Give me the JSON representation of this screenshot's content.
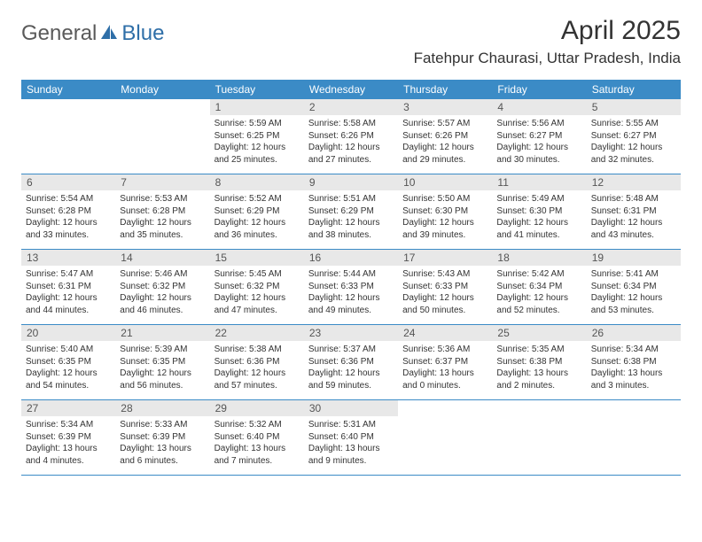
{
  "logo": {
    "text1": "General",
    "text2": "Blue"
  },
  "title": "April 2025",
  "location": "Fatehpur Chaurasi, Uttar Pradesh, India",
  "colors": {
    "header_bg": "#3b8bc6",
    "header_text": "#ffffff",
    "daynum_bg": "#e8e8e8",
    "border": "#3b8bc6",
    "body_text": "#333333",
    "logo_gray": "#5a5a5a",
    "logo_blue": "#2f6fa8"
  },
  "typography": {
    "title_fontsize": 30,
    "location_fontsize": 17,
    "dayheader_fontsize": 12,
    "daynum_fontsize": 12,
    "body_fontsize": 10
  },
  "day_names": [
    "Sunday",
    "Monday",
    "Tuesday",
    "Wednesday",
    "Thursday",
    "Friday",
    "Saturday"
  ],
  "weeks": [
    [
      null,
      null,
      {
        "n": "1",
        "sunrise": "Sunrise: 5:59 AM",
        "sunset": "Sunset: 6:25 PM",
        "daylight": "Daylight: 12 hours and 25 minutes."
      },
      {
        "n": "2",
        "sunrise": "Sunrise: 5:58 AM",
        "sunset": "Sunset: 6:26 PM",
        "daylight": "Daylight: 12 hours and 27 minutes."
      },
      {
        "n": "3",
        "sunrise": "Sunrise: 5:57 AM",
        "sunset": "Sunset: 6:26 PM",
        "daylight": "Daylight: 12 hours and 29 minutes."
      },
      {
        "n": "4",
        "sunrise": "Sunrise: 5:56 AM",
        "sunset": "Sunset: 6:27 PM",
        "daylight": "Daylight: 12 hours and 30 minutes."
      },
      {
        "n": "5",
        "sunrise": "Sunrise: 5:55 AM",
        "sunset": "Sunset: 6:27 PM",
        "daylight": "Daylight: 12 hours and 32 minutes."
      }
    ],
    [
      {
        "n": "6",
        "sunrise": "Sunrise: 5:54 AM",
        "sunset": "Sunset: 6:28 PM",
        "daylight": "Daylight: 12 hours and 33 minutes."
      },
      {
        "n": "7",
        "sunrise": "Sunrise: 5:53 AM",
        "sunset": "Sunset: 6:28 PM",
        "daylight": "Daylight: 12 hours and 35 minutes."
      },
      {
        "n": "8",
        "sunrise": "Sunrise: 5:52 AM",
        "sunset": "Sunset: 6:29 PM",
        "daylight": "Daylight: 12 hours and 36 minutes."
      },
      {
        "n": "9",
        "sunrise": "Sunrise: 5:51 AM",
        "sunset": "Sunset: 6:29 PM",
        "daylight": "Daylight: 12 hours and 38 minutes."
      },
      {
        "n": "10",
        "sunrise": "Sunrise: 5:50 AM",
        "sunset": "Sunset: 6:30 PM",
        "daylight": "Daylight: 12 hours and 39 minutes."
      },
      {
        "n": "11",
        "sunrise": "Sunrise: 5:49 AM",
        "sunset": "Sunset: 6:30 PM",
        "daylight": "Daylight: 12 hours and 41 minutes."
      },
      {
        "n": "12",
        "sunrise": "Sunrise: 5:48 AM",
        "sunset": "Sunset: 6:31 PM",
        "daylight": "Daylight: 12 hours and 43 minutes."
      }
    ],
    [
      {
        "n": "13",
        "sunrise": "Sunrise: 5:47 AM",
        "sunset": "Sunset: 6:31 PM",
        "daylight": "Daylight: 12 hours and 44 minutes."
      },
      {
        "n": "14",
        "sunrise": "Sunrise: 5:46 AM",
        "sunset": "Sunset: 6:32 PM",
        "daylight": "Daylight: 12 hours and 46 minutes."
      },
      {
        "n": "15",
        "sunrise": "Sunrise: 5:45 AM",
        "sunset": "Sunset: 6:32 PM",
        "daylight": "Daylight: 12 hours and 47 minutes."
      },
      {
        "n": "16",
        "sunrise": "Sunrise: 5:44 AM",
        "sunset": "Sunset: 6:33 PM",
        "daylight": "Daylight: 12 hours and 49 minutes."
      },
      {
        "n": "17",
        "sunrise": "Sunrise: 5:43 AM",
        "sunset": "Sunset: 6:33 PM",
        "daylight": "Daylight: 12 hours and 50 minutes."
      },
      {
        "n": "18",
        "sunrise": "Sunrise: 5:42 AM",
        "sunset": "Sunset: 6:34 PM",
        "daylight": "Daylight: 12 hours and 52 minutes."
      },
      {
        "n": "19",
        "sunrise": "Sunrise: 5:41 AM",
        "sunset": "Sunset: 6:34 PM",
        "daylight": "Daylight: 12 hours and 53 minutes."
      }
    ],
    [
      {
        "n": "20",
        "sunrise": "Sunrise: 5:40 AM",
        "sunset": "Sunset: 6:35 PM",
        "daylight": "Daylight: 12 hours and 54 minutes."
      },
      {
        "n": "21",
        "sunrise": "Sunrise: 5:39 AM",
        "sunset": "Sunset: 6:35 PM",
        "daylight": "Daylight: 12 hours and 56 minutes."
      },
      {
        "n": "22",
        "sunrise": "Sunrise: 5:38 AM",
        "sunset": "Sunset: 6:36 PM",
        "daylight": "Daylight: 12 hours and 57 minutes."
      },
      {
        "n": "23",
        "sunrise": "Sunrise: 5:37 AM",
        "sunset": "Sunset: 6:36 PM",
        "daylight": "Daylight: 12 hours and 59 minutes."
      },
      {
        "n": "24",
        "sunrise": "Sunrise: 5:36 AM",
        "sunset": "Sunset: 6:37 PM",
        "daylight": "Daylight: 13 hours and 0 minutes."
      },
      {
        "n": "25",
        "sunrise": "Sunrise: 5:35 AM",
        "sunset": "Sunset: 6:38 PM",
        "daylight": "Daylight: 13 hours and 2 minutes."
      },
      {
        "n": "26",
        "sunrise": "Sunrise: 5:34 AM",
        "sunset": "Sunset: 6:38 PM",
        "daylight": "Daylight: 13 hours and 3 minutes."
      }
    ],
    [
      {
        "n": "27",
        "sunrise": "Sunrise: 5:34 AM",
        "sunset": "Sunset: 6:39 PM",
        "daylight": "Daylight: 13 hours and 4 minutes."
      },
      {
        "n": "28",
        "sunrise": "Sunrise: 5:33 AM",
        "sunset": "Sunset: 6:39 PM",
        "daylight": "Daylight: 13 hours and 6 minutes."
      },
      {
        "n": "29",
        "sunrise": "Sunrise: 5:32 AM",
        "sunset": "Sunset: 6:40 PM",
        "daylight": "Daylight: 13 hours and 7 minutes."
      },
      {
        "n": "30",
        "sunrise": "Sunrise: 5:31 AM",
        "sunset": "Sunset: 6:40 PM",
        "daylight": "Daylight: 13 hours and 9 minutes."
      },
      null,
      null,
      null
    ]
  ]
}
